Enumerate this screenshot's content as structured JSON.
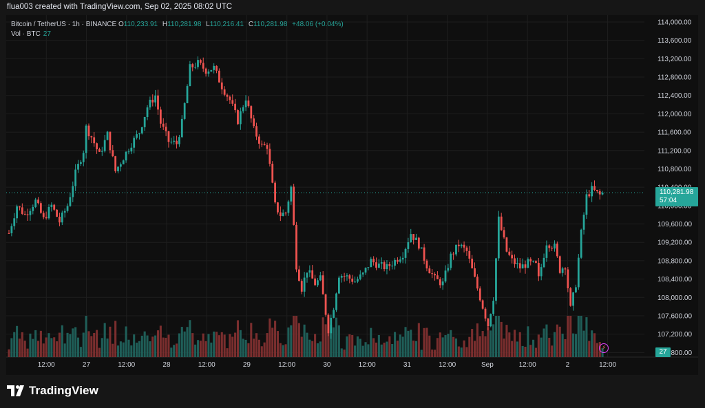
{
  "header": {
    "title": "flua003 created with TradingView.com, Sep 02, 2025 08:02 UTC"
  },
  "legend": {
    "symbol": "Bitcoin / TetherUS · 1h · BINANCE",
    "open_label": "O",
    "open": "110,233.91",
    "high_label": "H",
    "high": "110,281.98",
    "low_label": "L",
    "low": "110,216.41",
    "close_label": "C",
    "close": "110,281.98",
    "change": "+48.06 (+0.04%)",
    "vol_label": "Vol · BTC",
    "vol_value": "27"
  },
  "price_badge": {
    "price": "110,281.98",
    "countdown": "57:04"
  },
  "volume_badge": "27",
  "brand": {
    "name": "TradingView"
  },
  "colors": {
    "up": "#26a69a",
    "down": "#ef5350",
    "vol_up": "#1f5e58",
    "vol_down": "#7a2e2e"
  },
  "icons": [
    "lightning-icon",
    "tradingview-logo-icon"
  ],
  "chart_data": {
    "type": "candlestick",
    "y_axis": {
      "ticks": [
        106800,
        107200,
        107600,
        108000,
        108400,
        108800,
        109200,
        109600,
        110000,
        110400,
        110800,
        111200,
        111600,
        112000,
        112400,
        112800,
        113200,
        113600,
        114000
      ],
      "tick_labels": [
        "106,800.00",
        "107,200.00",
        "107,600.00",
        "108,000.00",
        "108,400.00",
        "108,800.00",
        "109,200.00",
        "109,600.00",
        "110,000.00",
        "110,400.00",
        "110,800.00",
        "111,200.00",
        "111,600.00",
        "112,000.00",
        "112,400.00",
        "112,800.00",
        "113,200.00",
        "113,600.00",
        "114,000.00"
      ],
      "range": [
        106700,
        114150
      ]
    },
    "x_axis": {
      "labels": [
        "12:00",
        "27",
        "12:00",
        "28",
        "12:00",
        "29",
        "12:00",
        "30",
        "12:00",
        "31",
        "12:00",
        "Sep",
        "12:00",
        "2",
        "12:00"
      ],
      "label_hours": [
        12,
        24,
        36,
        48,
        60,
        72,
        84,
        96,
        108,
        120,
        132,
        144,
        156,
        168,
        180
      ],
      "range_hours": [
        0,
        191
      ]
    },
    "last_price": 110281.98,
    "anchors": [
      [
        0,
        109400
      ],
      [
        3,
        110000
      ],
      [
        6,
        109800
      ],
      [
        10,
        110100
      ],
      [
        13,
        109700
      ],
      [
        16,
        110000
      ],
      [
        19,
        109650
      ],
      [
        22,
        110000
      ],
      [
        25,
        110700
      ],
      [
        28,
        111200
      ],
      [
        29,
        111700
      ],
      [
        31,
        111500
      ],
      [
        34,
        111100
      ],
      [
        37,
        111550
      ],
      [
        40,
        110750
      ],
      [
        43,
        111050
      ],
      [
        46,
        111350
      ],
      [
        49,
        111600
      ],
      [
        52,
        112150
      ],
      [
        55,
        112400
      ],
      [
        57,
        111800
      ],
      [
        60,
        111400
      ],
      [
        63,
        111350
      ],
      [
        65,
        111800
      ],
      [
        68,
        113000
      ],
      [
        71,
        113100
      ],
      [
        74,
        112950
      ],
      [
        77,
        113000
      ],
      [
        80,
        112600
      ],
      [
        83,
        112300
      ],
      [
        86,
        111850
      ],
      [
        89,
        112350
      ],
      [
        92,
        111650
      ],
      [
        95,
        111300
      ],
      [
        97,
        111300
      ],
      [
        100,
        110000
      ],
      [
        102,
        109800
      ],
      [
        104,
        109850
      ],
      [
        106,
        110400
      ],
      [
        108,
        108700
      ],
      [
        110,
        108200
      ],
      [
        112,
        108600
      ],
      [
        115,
        108300
      ],
      [
        117,
        108400
      ],
      [
        120,
        107300
      ],
      [
        122,
        107800
      ],
      [
        124,
        108500
      ],
      [
        127,
        108450
      ],
      [
        130,
        108350
      ],
      [
        133,
        108500
      ],
      [
        136,
        108800
      ],
      [
        139,
        108700
      ],
      [
        142,
        108650
      ],
      [
        145,
        108800
      ],
      [
        148,
        108950
      ],
      [
        151,
        109400
      ],
      [
        154,
        109150
      ],
      [
        157,
        108700
      ],
      [
        160,
        108400
      ],
      [
        163,
        108300
      ],
      [
        166,
        108900
      ],
      [
        169,
        109150
      ],
      [
        172,
        109000
      ],
      [
        175,
        108400
      ],
      [
        178,
        107800
      ],
      [
        180,
        107400
      ],
      [
        182,
        108000
      ],
      [
        184,
        109700
      ],
      [
        187,
        109000
      ],
      [
        189,
        108800
      ],
      [
        191,
        108700
      ],
      [
        192,
        108650
      ],
      [
        195,
        108750
      ],
      [
        198,
        108700
      ],
      [
        199,
        108400
      ],
      [
        202,
        109200
      ],
      [
        205,
        109100
      ],
      [
        207,
        108600
      ],
      [
        209,
        108700
      ],
      [
        211,
        107750
      ],
      [
        213,
        108300
      ],
      [
        215,
        109400
      ],
      [
        217,
        110200
      ],
      [
        219,
        110350
      ],
      [
        222,
        110230
      ],
      [
        223,
        110282
      ]
    ],
    "volume_note": "volume histogram shown along bottom of pane"
  }
}
